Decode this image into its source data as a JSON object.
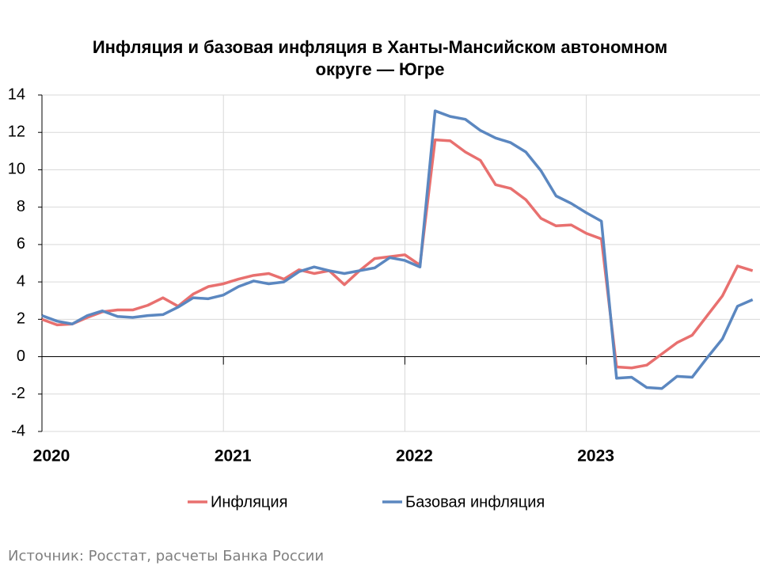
{
  "chart_data": {
    "type": "line",
    "title": "Инфляция и базовая инфляция в Ханты-Мансийском автономном округе — Югре",
    "source": "Источник: Росстат, расчеты Банка России",
    "categories": [
      "2020",
      null,
      null,
      null,
      null,
      null,
      null,
      null,
      null,
      null,
      null,
      null,
      "2021",
      null,
      null,
      null,
      null,
      null,
      null,
      null,
      null,
      null,
      null,
      null,
      "2022",
      null,
      null,
      null,
      null,
      null,
      null,
      null,
      null,
      null,
      null,
      null,
      "2023",
      null,
      null,
      null,
      null,
      null,
      null,
      null,
      null,
      null,
      null,
      null
    ],
    "series": [
      {
        "name": "Инфляция",
        "color": "#e8706f",
        "values": [
          2.0,
          1.7,
          1.75,
          2.1,
          2.4,
          2.5,
          2.5,
          2.75,
          3.15,
          2.7,
          3.35,
          3.75,
          3.9,
          4.15,
          4.35,
          4.45,
          4.15,
          4.65,
          4.45,
          4.6,
          3.85,
          4.6,
          5.25,
          5.35,
          5.45,
          4.9,
          11.6,
          11.55,
          10.95,
          10.5,
          9.2,
          9.0,
          8.4,
          7.4,
          7.0,
          7.05,
          6.6,
          6.3,
          -0.55,
          -0.6,
          -0.45,
          0.15,
          0.75,
          1.15,
          2.2,
          3.25,
          4.85,
          4.6
        ]
      },
      {
        "name": "Базовая инфляция",
        "color": "#5b87c0",
        "values": [
          2.2,
          1.9,
          1.75,
          2.2,
          2.45,
          2.15,
          2.1,
          2.2,
          2.25,
          2.65,
          3.15,
          3.1,
          3.3,
          3.75,
          4.05,
          3.9,
          4.0,
          4.55,
          4.8,
          4.6,
          4.45,
          4.6,
          4.75,
          5.3,
          5.15,
          4.8,
          13.15,
          12.85,
          12.7,
          12.1,
          11.7,
          11.45,
          10.95,
          9.95,
          8.6,
          8.2,
          7.7,
          7.25,
          -1.15,
          -1.1,
          -1.65,
          -1.7,
          -1.05,
          -1.1,
          -0.05,
          0.95,
          2.7,
          3.05
        ]
      }
    ],
    "ylim": [
      -4,
      14
    ],
    "yticks": [
      -4,
      -2,
      0,
      2,
      4,
      6,
      8,
      10,
      12,
      14
    ],
    "grid": true
  }
}
